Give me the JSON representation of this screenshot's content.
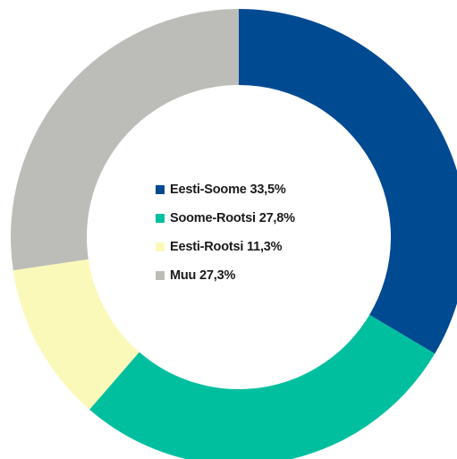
{
  "chart_data": {
    "type": "pie",
    "variant": "donut",
    "title": "",
    "legend_position": "center",
    "slices": [
      {
        "label": "Eesti-Soome 33,5%",
        "name": "Eesti-Soome",
        "value": 33.5,
        "color": "#004a92"
      },
      {
        "label": "Soome-Rootsi 27,8%",
        "name": "Soome-Rootsi",
        "value": 27.8,
        "color": "#00bf9f"
      },
      {
        "label": "Eesti-Rootsi 11,3%",
        "name": "Eesti-Rootsi",
        "value": 11.3,
        "color": "#fbf9b9"
      },
      {
        "label": "Muu 27,3%",
        "name": "Muu",
        "value": 27.3,
        "color": "#bcbdb8"
      }
    ]
  }
}
